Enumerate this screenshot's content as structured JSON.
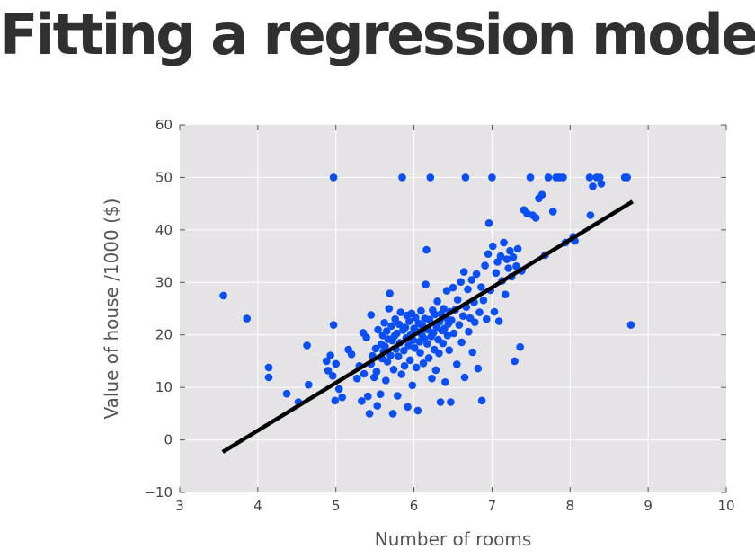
{
  "slide": {
    "title": "Fitting a regression model"
  },
  "chart_data": {
    "type": "scatter",
    "title": "",
    "xlabel": "Number of rooms",
    "ylabel": "Value of house /1000 ($)",
    "xlim": [
      3,
      10
    ],
    "ylim": [
      -10,
      60
    ],
    "xticks": [
      3,
      4,
      5,
      6,
      7,
      8,
      9,
      10
    ],
    "yticks": [
      -10,
      0,
      10,
      20,
      30,
      40,
      50,
      60
    ],
    "xtick_labels": [
      "3",
      "4",
      "5",
      "6",
      "7",
      "8",
      "9",
      "10"
    ],
    "ytick_labels": [
      "−10",
      "0",
      "10",
      "20",
      "30",
      "40",
      "50",
      "60"
    ],
    "grid": true,
    "background": "#e5e3e6",
    "series": [
      {
        "type": "scatter",
        "color": "#0a4ff5",
        "points": [
          [
            3.56,
            27.5
          ],
          [
            3.86,
            23.1
          ],
          [
            4.14,
            13.8
          ],
          [
            4.14,
            11.9
          ],
          [
            4.37,
            8.8
          ],
          [
            4.52,
            7.2
          ],
          [
            4.63,
            18.0
          ],
          [
            4.65,
            10.5
          ],
          [
            4.88,
            15.0
          ],
          [
            4.9,
            13.2
          ],
          [
            4.93,
            16.1
          ],
          [
            4.96,
            12.2
          ],
          [
            4.97,
            50.0
          ],
          [
            4.97,
            21.9
          ],
          [
            4.99,
            7.5
          ],
          [
            5.0,
            14.5
          ],
          [
            5.04,
            9.7
          ],
          [
            5.08,
            8.1
          ],
          [
            5.16,
            17.2
          ],
          [
            5.2,
            16.3
          ],
          [
            5.27,
            11.7
          ],
          [
            5.3,
            14.1
          ],
          [
            5.33,
            7.4
          ],
          [
            5.35,
            20.4
          ],
          [
            5.36,
            12.6
          ],
          [
            5.39,
            19.5
          ],
          [
            5.41,
            8.3
          ],
          [
            5.43,
            5.0
          ],
          [
            5.45,
            23.8
          ],
          [
            5.45,
            14.5
          ],
          [
            5.47,
            16.0
          ],
          [
            5.49,
            11.9
          ],
          [
            5.51,
            17.4
          ],
          [
            5.52,
            13.0
          ],
          [
            5.53,
            6.5
          ],
          [
            5.54,
            21.0
          ],
          [
            5.57,
            8.7
          ],
          [
            5.58,
            18.2
          ],
          [
            5.59,
            15.5
          ],
          [
            5.6,
            19.9
          ],
          [
            5.61,
            16.8
          ],
          [
            5.62,
            22.3
          ],
          [
            5.63,
            17.8
          ],
          [
            5.64,
            11.3
          ],
          [
            5.65,
            20.7
          ],
          [
            5.66,
            14.9
          ],
          [
            5.67,
            19.2
          ],
          [
            5.68,
            25.0
          ],
          [
            5.69,
            27.9
          ],
          [
            5.7,
            16.1
          ],
          [
            5.71,
            21.7
          ],
          [
            5.72,
            18.9
          ],
          [
            5.73,
            5.0
          ],
          [
            5.74,
            13.4
          ],
          [
            5.75,
            19.8
          ],
          [
            5.76,
            23.0
          ],
          [
            5.77,
            17.3
          ],
          [
            5.78,
            20.3
          ],
          [
            5.79,
            8.4
          ],
          [
            5.8,
            15.9
          ],
          [
            5.81,
            22.0
          ],
          [
            5.82,
            18.5
          ],
          [
            5.83,
            24.3
          ],
          [
            5.84,
            12.5
          ],
          [
            5.85,
            50.0
          ],
          [
            5.86,
            20.9
          ],
          [
            5.87,
            17.0
          ],
          [
            5.88,
            14.1
          ],
          [
            5.89,
            21.4
          ],
          [
            5.9,
            19.4
          ],
          [
            5.91,
            23.7
          ],
          [
            5.92,
            6.3
          ],
          [
            5.93,
            18.0
          ],
          [
            5.94,
            22.6
          ],
          [
            5.95,
            15.2
          ],
          [
            5.96,
            20.1
          ],
          [
            5.97,
            24.1
          ],
          [
            5.98,
            10.4
          ],
          [
            5.99,
            19.0
          ],
          [
            6.0,
            21.2
          ],
          [
            6.01,
            17.5
          ],
          [
            6.02,
            23.3
          ],
          [
            6.03,
            13.8
          ],
          [
            6.04,
            20.6
          ],
          [
            6.05,
            5.6
          ],
          [
            6.06,
            22.2
          ],
          [
            6.07,
            18.7
          ],
          [
            6.08,
            16.6
          ],
          [
            6.09,
            24.6
          ],
          [
            6.1,
            20.0
          ],
          [
            6.11,
            21.7
          ],
          [
            6.12,
            14.6
          ],
          [
            6.13,
            19.3
          ],
          [
            6.14,
            23.1
          ],
          [
            6.15,
            29.6
          ],
          [
            6.16,
            36.2
          ],
          [
            6.17,
            18.3
          ],
          [
            6.18,
            21.0
          ],
          [
            6.19,
            15.6
          ],
          [
            6.2,
            22.9
          ],
          [
            6.21,
            50.0
          ],
          [
            6.22,
            19.7
          ],
          [
            6.23,
            11.7
          ],
          [
            6.24,
            24.7
          ],
          [
            6.25,
            20.4
          ],
          [
            6.26,
            17.2
          ],
          [
            6.27,
            23.9
          ],
          [
            6.28,
            13.3
          ],
          [
            6.29,
            21.5
          ],
          [
            6.3,
            26.4
          ],
          [
            6.31,
            19.1
          ],
          [
            6.32,
            16.5
          ],
          [
            6.33,
            22.5
          ],
          [
            6.34,
            7.2
          ],
          [
            6.35,
            24.0
          ],
          [
            6.36,
            20.8
          ],
          [
            6.37,
            18.4
          ],
          [
            6.38,
            25.0
          ],
          [
            6.39,
            21.2
          ],
          [
            6.4,
            11.0
          ],
          [
            6.41,
            23.3
          ],
          [
            6.42,
            28.4
          ],
          [
            6.43,
            19.9
          ],
          [
            6.44,
            22.1
          ],
          [
            6.45,
            17.1
          ],
          [
            6.46,
            24.4
          ],
          [
            6.47,
            7.2
          ],
          [
            6.48,
            22.8
          ],
          [
            6.5,
            29.0
          ],
          [
            6.51,
            20.3
          ],
          [
            6.53,
            24.8
          ],
          [
            6.55,
            14.4
          ],
          [
            6.56,
            26.7
          ],
          [
            6.58,
            21.9
          ],
          [
            6.6,
            30.1
          ],
          [
            6.61,
            18.6
          ],
          [
            6.63,
            23.6
          ],
          [
            6.64,
            32.0
          ],
          [
            6.65,
            11.9
          ],
          [
            6.66,
            50.0
          ],
          [
            6.67,
            25.3
          ],
          [
            6.69,
            28.7
          ],
          [
            6.7,
            20.6
          ],
          [
            6.72,
            23.2
          ],
          [
            6.74,
            30.5
          ],
          [
            6.75,
            16.7
          ],
          [
            6.77,
            26.2
          ],
          [
            6.78,
            22.4
          ],
          [
            6.8,
            31.6
          ],
          [
            6.82,
            13.6
          ],
          [
            6.84,
            24.3
          ],
          [
            6.86,
            29.1
          ],
          [
            6.87,
            7.5
          ],
          [
            6.89,
            26.6
          ],
          [
            6.91,
            33.2
          ],
          [
            6.93,
            23.0
          ],
          [
            6.95,
            35.4
          ],
          [
            6.96,
            41.3
          ],
          [
            6.98,
            28.5
          ],
          [
            7.0,
            50.0
          ],
          [
            7.01,
            36.9
          ],
          [
            7.03,
            24.4
          ],
          [
            7.05,
            31.8
          ],
          [
            7.07,
            33.9
          ],
          [
            7.09,
            22.6
          ],
          [
            7.11,
            35.0
          ],
          [
            7.13,
            30.3
          ],
          [
            7.15,
            37.6
          ],
          [
            7.17,
            27.7
          ],
          [
            7.19,
            34.4
          ],
          [
            7.21,
            32.7
          ],
          [
            7.23,
            36.0
          ],
          [
            7.25,
            31.1
          ],
          [
            7.27,
            34.8
          ],
          [
            7.29,
            15.0
          ],
          [
            7.31,
            33.1
          ],
          [
            7.33,
            36.4
          ],
          [
            7.36,
            17.7
          ],
          [
            7.38,
            32.2
          ],
          [
            7.41,
            43.8
          ],
          [
            7.45,
            43.1
          ],
          [
            7.49,
            50.0
          ],
          [
            7.52,
            42.8
          ],
          [
            7.56,
            42.3
          ],
          [
            7.6,
            46.0
          ],
          [
            7.64,
            46.7
          ],
          [
            7.68,
            35.2
          ],
          [
            7.72,
            50.0
          ],
          [
            7.78,
            43.5
          ],
          [
            7.82,
            50.0
          ],
          [
            7.85,
            50.0
          ],
          [
            7.88,
            50.0
          ],
          [
            7.91,
            50.0
          ],
          [
            7.94,
            37.6
          ],
          [
            8.04,
            38.7
          ],
          [
            8.06,
            37.9
          ],
          [
            8.25,
            50.0
          ],
          [
            8.26,
            42.8
          ],
          [
            8.29,
            48.3
          ],
          [
            8.34,
            50.0
          ],
          [
            8.38,
            50.0
          ],
          [
            8.4,
            48.8
          ],
          [
            8.7,
            50.0
          ],
          [
            8.73,
            50.0
          ],
          [
            8.78,
            21.9
          ]
        ]
      },
      {
        "type": "line",
        "color": "#000000",
        "x": [
          3.55,
          8.8
        ],
        "y": [
          -2.3,
          45.4
        ]
      }
    ]
  }
}
